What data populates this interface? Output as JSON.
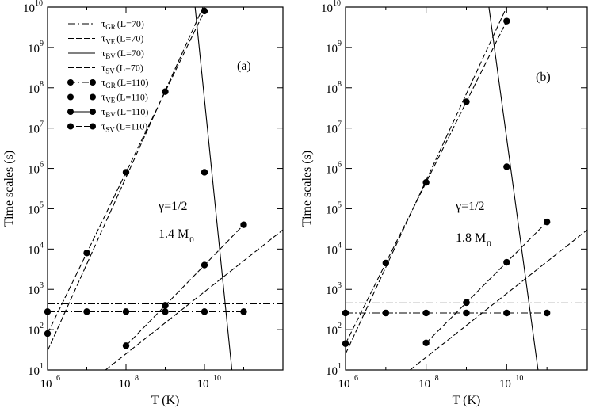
{
  "chart_data": [
    {
      "type": "line",
      "panel_label": "(a)",
      "annotation_gamma": "γ=1/2",
      "annotation_mass_value": "1.4 M",
      "annotation_mass_sub": "0",
      "xlabel": "T (K)",
      "ylabel": "Time scales (s)",
      "xscale": "log",
      "yscale": "log",
      "xlim": [
        1000000,
        1000000000000
      ],
      "ylim": [
        10,
        10000000000
      ],
      "x_ticks": [
        {
          "exp": "6",
          "value": 1000000
        },
        {
          "exp": "8",
          "value": 100000000
        },
        {
          "exp": "10",
          "value": 10000000000
        }
      ],
      "y_ticks": [
        {
          "exp": "1",
          "value": 10
        },
        {
          "exp": "2",
          "value": 100
        },
        {
          "exp": "3",
          "value": 1000
        },
        {
          "exp": "4",
          "value": 10000
        },
        {
          "exp": "5",
          "value": 100000
        },
        {
          "exp": "6",
          "value": 1000000
        },
        {
          "exp": "7",
          "value": 10000000
        },
        {
          "exp": "8",
          "value": 100000000
        },
        {
          "exp": "9",
          "value": 1000000000
        },
        {
          "exp": "10",
          "value": 10000000000
        }
      ],
      "legend": [
        {
          "sym": "τ",
          "sub": "GR",
          "rest": "(L=70)",
          "dash": "dashdot",
          "markers": false
        },
        {
          "sym": "τ",
          "sub": "VE",
          "rest": "(L=70)",
          "dash": "dashed",
          "markers": false
        },
        {
          "sym": "τ",
          "sub": "BV",
          "rest": "(L=70)",
          "dash": "solid",
          "markers": false
        },
        {
          "sym": "τ",
          "sub": "SV",
          "rest": "(L=70)",
          "dash": "dashed",
          "markers": false
        },
        {
          "sym": "τ",
          "sub": "GR",
          "rest": "(L=110)",
          "dash": "dashdot",
          "markers": true
        },
        {
          "sym": "τ",
          "sub": "VE",
          "rest": "(L=110)",
          "dash": "dashed",
          "markers": true
        },
        {
          "sym": "τ",
          "sub": "BV",
          "rest": "(L=110)",
          "dash": "solid",
          "markers": true
        },
        {
          "sym": "τ",
          "sub": "SV",
          "rest": "(L=110)",
          "dash": "dashed",
          "markers": true
        }
      ],
      "series": [
        {
          "name": "τGR (L=70)",
          "dash": "dashdot",
          "x": [
            1000000,
            1000000000000
          ],
          "y": [
            440,
            440
          ],
          "markers": false
        },
        {
          "name": "τVE (L=70)",
          "dash": "dashed",
          "x": [
            1000000,
            10000000000
          ],
          "y": [
            30,
            12000000000
          ],
          "markers": false
        },
        {
          "name": "τBV (L=70)",
          "dash": "solid",
          "x": [
            5000000000,
            50000000000
          ],
          "y": [
            40000000000,
            10
          ],
          "markers": false
        },
        {
          "name": "τSV (L=70)",
          "dash": "dashed",
          "x": [
            30000000,
            1000000000000
          ],
          "y": [
            10,
            30000
          ],
          "markers": false
        },
        {
          "name": "τGR (L=110)",
          "dash": "dashdot",
          "x": [
            1000000,
            10000000,
            100000000,
            1000000000,
            10000000000,
            100000000000
          ],
          "y": [
            280,
            280,
            280,
            280,
            280,
            280
          ],
          "markers": true
        },
        {
          "name": "τVE (L=110)",
          "dash": "dashed",
          "x": [
            1000000,
            10000000,
            100000000,
            1000000000,
            10000000000
          ],
          "y": [
            80,
            8000,
            800000,
            80000000,
            8000000000
          ],
          "markers": true
        },
        {
          "name": "τBV (L=110)",
          "dash": "solid",
          "x": [
            1000000000,
            10000000000
          ],
          "y": [
            400,
            800000
          ],
          "markers": true,
          "no_line": true
        },
        {
          "name": "τSV (L=110)",
          "dash": "dashed",
          "x": [
            100000000,
            1000000000,
            10000000000,
            100000000000
          ],
          "y": [
            40,
            400,
            4000,
            40000
          ],
          "markers": true
        }
      ]
    },
    {
      "type": "line",
      "panel_label": "(b)",
      "annotation_gamma": "γ=1/2",
      "annotation_mass_value": "1.8 M",
      "annotation_mass_sub": "0",
      "xlabel": "T (K)",
      "ylabel": "Time scales (s)",
      "xscale": "log",
      "yscale": "log",
      "xlim": [
        1000000,
        1000000000000
      ],
      "ylim": [
        10,
        10000000000
      ],
      "x_ticks": [
        {
          "exp": "6",
          "value": 1000000
        },
        {
          "exp": "8",
          "value": 100000000
        },
        {
          "exp": "10",
          "value": 10000000000
        }
      ],
      "y_ticks": [
        {
          "exp": "1",
          "value": 10
        },
        {
          "exp": "2",
          "value": 100
        },
        {
          "exp": "3",
          "value": 1000
        },
        {
          "exp": "4",
          "value": 10000
        },
        {
          "exp": "5",
          "value": 100000
        },
        {
          "exp": "6",
          "value": 1000000
        },
        {
          "exp": "7",
          "value": 10000000
        },
        {
          "exp": "8",
          "value": 100000000
        },
        {
          "exp": "9",
          "value": 1000000000
        },
        {
          "exp": "10",
          "value": 10000000000
        }
      ],
      "series": [
        {
          "name": "τGR (L=70)",
          "dash": "dashdot",
          "x": [
            1000000,
            1000000000000
          ],
          "y": [
            460,
            460
          ],
          "markers": false
        },
        {
          "name": "τVE (L=70)",
          "dash": "dashed",
          "x": [
            1000000,
            10000000000
          ],
          "y": [
            25,
            10000000000
          ],
          "markers": false
        },
        {
          "name": "τBV (L=70)",
          "dash": "solid",
          "x": [
            3000000000,
            60000000000
          ],
          "y": [
            40000000000,
            10
          ],
          "markers": false
        },
        {
          "name": "τSV (L=70)",
          "dash": "dashed",
          "x": [
            40000000,
            1000000000000
          ],
          "y": [
            10,
            30000
          ],
          "markers": false
        },
        {
          "name": "τGR (L=110)",
          "dash": "dashdot",
          "x": [
            1000000,
            10000000,
            100000000,
            1000000000,
            10000000000,
            100000000000
          ],
          "y": [
            260,
            260,
            260,
            260,
            260,
            260
          ],
          "markers": true
        },
        {
          "name": "τVE (L=110)",
          "dash": "dashed",
          "x": [
            1000000,
            10000000,
            100000000,
            1000000000,
            10000000000
          ],
          "y": [
            45,
            4500,
            450000,
            45000000,
            4500000000
          ],
          "markers": true
        },
        {
          "name": "τBV (L=110)",
          "dash": "solid",
          "x": [
            1000000000,
            10000000000
          ],
          "y": [
            470,
            1100000
          ],
          "markers": true,
          "no_line": true
        },
        {
          "name": "τSV (L=110)",
          "dash": "dashed",
          "x": [
            100000000,
            1000000000,
            10000000000,
            100000000000
          ],
          "y": [
            47,
            470,
            4700,
            47000
          ],
          "markers": true
        }
      ]
    }
  ]
}
